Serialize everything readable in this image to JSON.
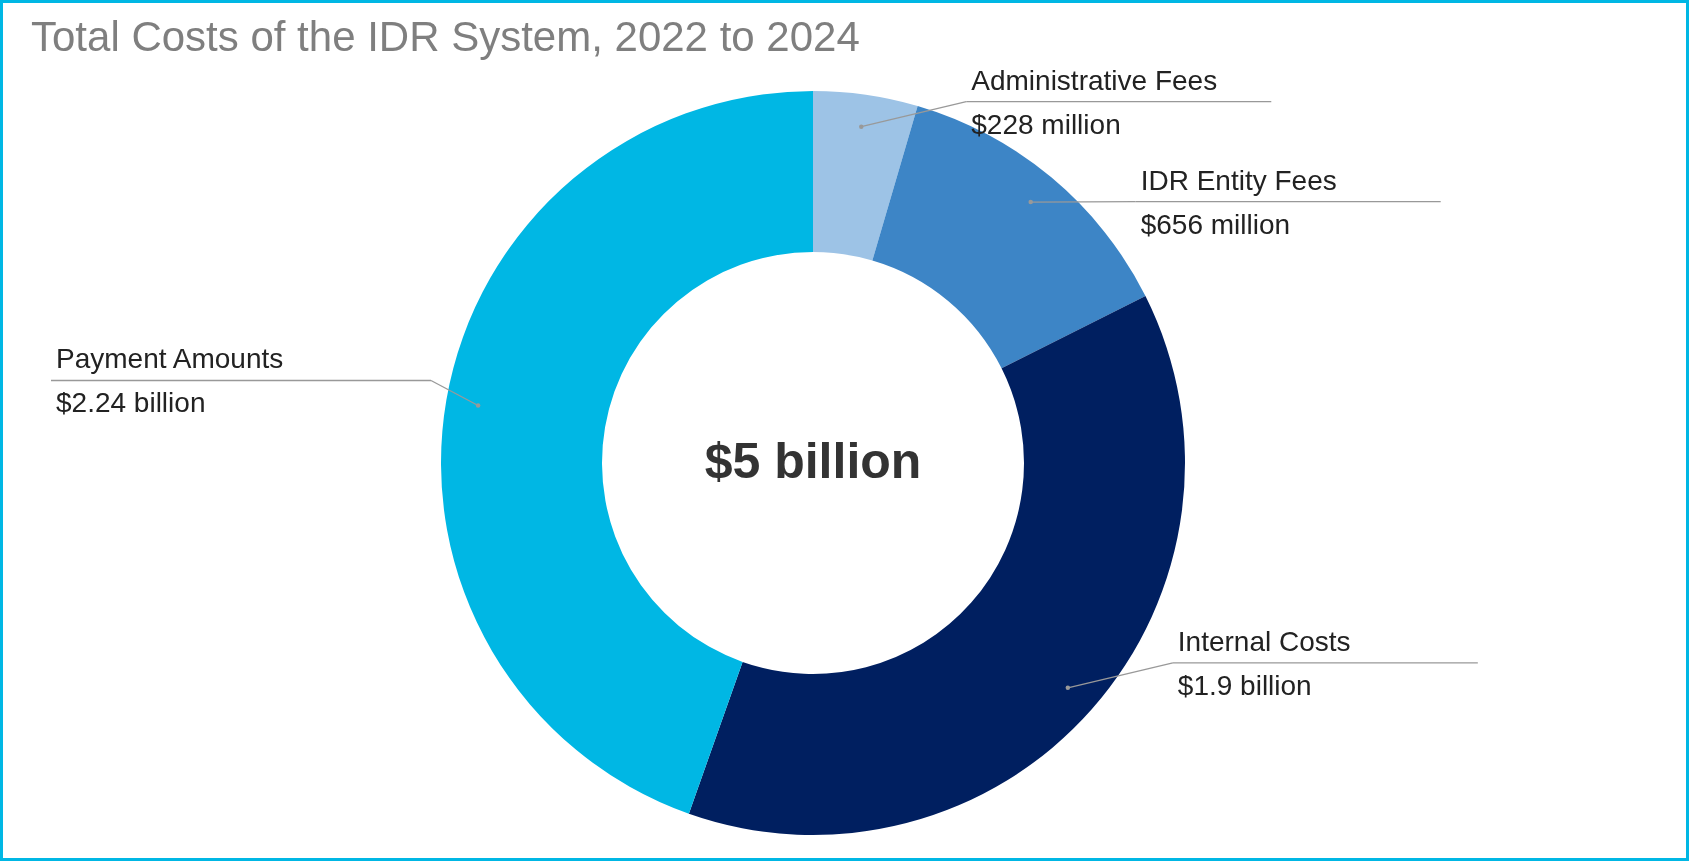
{
  "chart_data": {
    "type": "donut",
    "title": "Total Costs of the IDR System, 2022 to 2024",
    "categories": [
      "Administrative Fees",
      "IDR Entity Fees",
      "Internal Costs",
      "Payment Amounts"
    ],
    "values": [
      228000000,
      656000000,
      1900000000,
      2240000000
    ],
    "value_labels": [
      "$228 million",
      "$656 million",
      "$1.9 billion",
      "$2.24 billion"
    ],
    "colors": [
      "#9dc3e6",
      "#3d85c6",
      "#001f60",
      "#00b7e4"
    ],
    "annotations": [
      "$5 billion"
    ],
    "legend": false
  }
}
